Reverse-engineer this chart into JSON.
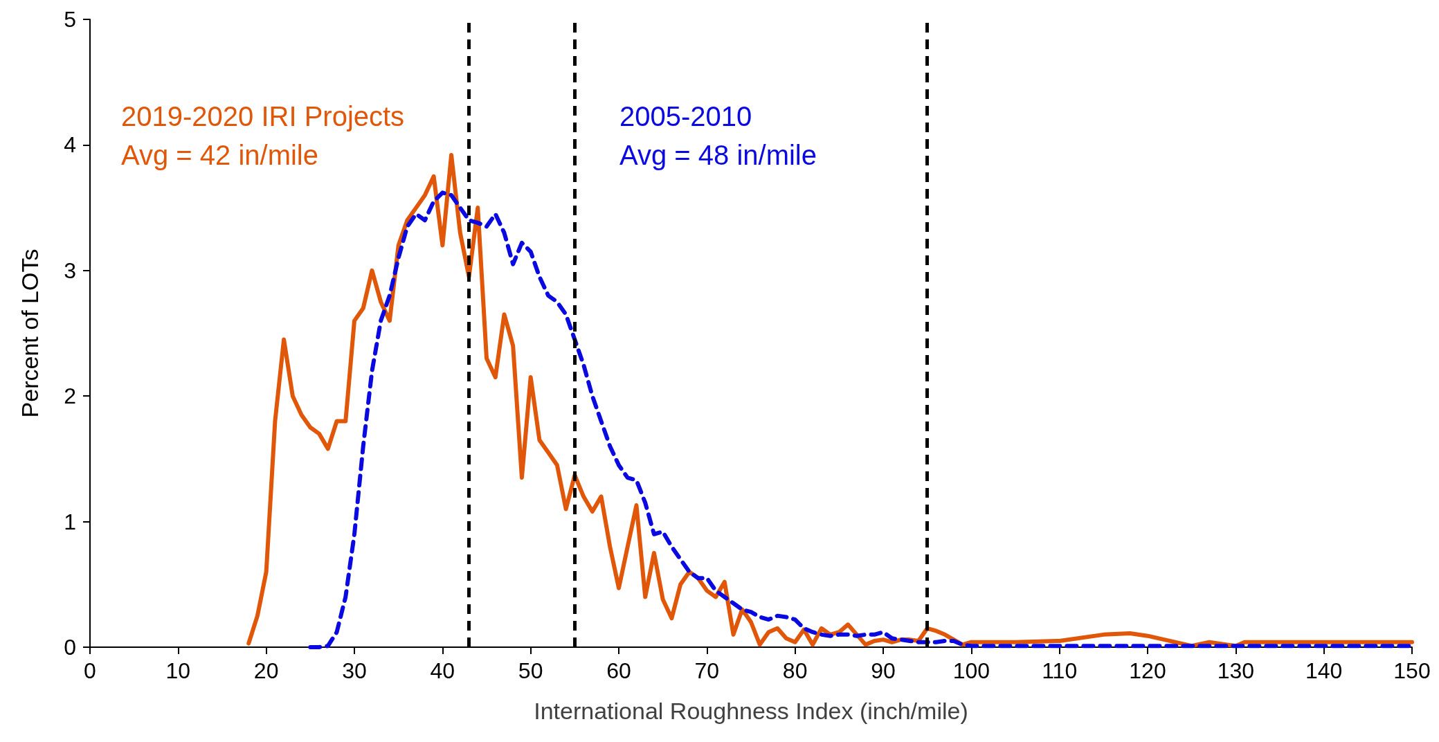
{
  "chart_data": {
    "type": "line",
    "xlabel": "International Roughness Index (inch/mile)",
    "ylabel": "Percent of LOTs",
    "xlim": [
      0,
      150
    ],
    "xticks": [
      0,
      10,
      20,
      30,
      40,
      50,
      60,
      70,
      80,
      90,
      100,
      110,
      120,
      130,
      140,
      150
    ],
    "ylim": [
      0,
      5
    ],
    "yticks": [
      0,
      1,
      2,
      3,
      4,
      5
    ],
    "grid": false,
    "legend": false,
    "marker": "none",
    "series": [
      {
        "name": "2019-2020 IRI Projects",
        "color": "#e0570a",
        "line_style": "solid",
        "x": [
          18,
          19,
          20,
          21,
          22,
          23,
          24,
          25,
          26,
          27,
          28,
          29,
          30,
          31,
          32,
          33,
          34,
          35,
          36,
          37,
          38,
          39,
          40,
          41,
          42,
          43,
          44,
          45,
          46,
          47,
          48,
          49,
          50,
          51,
          52,
          53,
          54,
          55,
          56,
          57,
          58,
          59,
          60,
          61,
          62,
          63,
          64,
          65,
          66,
          67,
          68,
          69,
          70,
          71,
          72,
          73,
          74,
          75,
          76,
          77,
          78,
          79,
          80,
          81,
          82,
          83,
          84,
          85,
          86,
          87,
          88,
          89,
          90,
          91,
          92,
          93,
          94,
          95,
          96,
          97,
          98,
          99,
          100,
          105,
          110,
          115,
          118,
          120,
          125,
          127,
          130,
          131,
          150
        ],
        "values": [
          0.03,
          0.25,
          0.6,
          1.8,
          2.45,
          2.0,
          1.85,
          1.75,
          1.7,
          1.58,
          1.8,
          1.8,
          2.6,
          2.7,
          3.0,
          2.75,
          2.6,
          3.2,
          3.4,
          3.5,
          3.6,
          3.75,
          3.2,
          3.92,
          3.3,
          2.95,
          3.5,
          2.3,
          2.15,
          2.65,
          2.4,
          1.35,
          2.15,
          1.65,
          1.55,
          1.45,
          1.1,
          1.37,
          1.2,
          1.08,
          1.2,
          0.8,
          0.47,
          0.8,
          1.13,
          0.4,
          0.75,
          0.38,
          0.23,
          0.5,
          0.6,
          0.55,
          0.45,
          0.4,
          0.52,
          0.1,
          0.3,
          0.2,
          0.02,
          0.12,
          0.15,
          0.07,
          0.04,
          0.14,
          0.02,
          0.15,
          0.1,
          0.12,
          0.18,
          0.1,
          0.02,
          0.05,
          0.06,
          0.04,
          0.06,
          0.06,
          0.05,
          0.15,
          0.13,
          0.1,
          0.06,
          0.02,
          0.04,
          0.04,
          0.05,
          0.1,
          0.11,
          0.09,
          0.01,
          0.04,
          0.01,
          0.04,
          0.04
        ]
      },
      {
        "name": "2005-2010",
        "color": "#0a0ae0",
        "line_style": "dashed",
        "x": [
          25,
          26,
          27,
          28,
          29,
          30,
          31,
          32,
          33,
          34,
          35,
          36,
          37,
          38,
          39,
          40,
          41,
          42,
          43,
          44,
          45,
          46,
          47,
          48,
          49,
          50,
          51,
          52,
          53,
          54,
          55,
          56,
          57,
          58,
          59,
          60,
          61,
          62,
          63,
          64,
          65,
          66,
          67,
          68,
          69,
          70,
          71,
          72,
          73,
          74,
          75,
          76,
          77,
          78,
          79,
          80,
          81,
          82,
          83,
          84,
          85,
          86,
          87,
          88,
          89,
          90,
          91,
          92,
          93,
          94,
          95,
          96,
          97,
          98,
          99,
          100,
          110,
          150
        ],
        "values": [
          0,
          0,
          0.01,
          0.12,
          0.4,
          0.9,
          1.6,
          2.2,
          2.6,
          2.8,
          3.1,
          3.35,
          3.45,
          3.4,
          3.55,
          3.62,
          3.6,
          3.5,
          3.4,
          3.38,
          3.35,
          3.45,
          3.3,
          3.05,
          3.22,
          3.15,
          2.95,
          2.8,
          2.75,
          2.65,
          2.45,
          2.25,
          2.0,
          1.8,
          1.6,
          1.45,
          1.35,
          1.33,
          1.15,
          0.9,
          0.92,
          0.8,
          0.7,
          0.6,
          0.55,
          0.55,
          0.45,
          0.4,
          0.35,
          0.3,
          0.28,
          0.24,
          0.22,
          0.25,
          0.24,
          0.22,
          0.15,
          0.12,
          0.1,
          0.09,
          0.1,
          0.1,
          0.09,
          0.1,
          0.1,
          0.12,
          0.07,
          0.06,
          0.05,
          0.04,
          0.04,
          0.04,
          0.05,
          0.05,
          0.02,
          0.01,
          0.01,
          0.01
        ]
      }
    ],
    "annotations": [
      "Avg = 42 in/mile",
      "Avg = 48 in/mile"
    ],
    "ref_lines": [
      {
        "axis": "x",
        "value": 43,
        "color": "#000000",
        "line_style": "dashed"
      },
      {
        "axis": "x",
        "value": 55,
        "color": "#000000",
        "line_style": "dashed"
      },
      {
        "axis": "x",
        "value": 95,
        "color": "#000000",
        "line_style": "dashed"
      }
    ]
  }
}
